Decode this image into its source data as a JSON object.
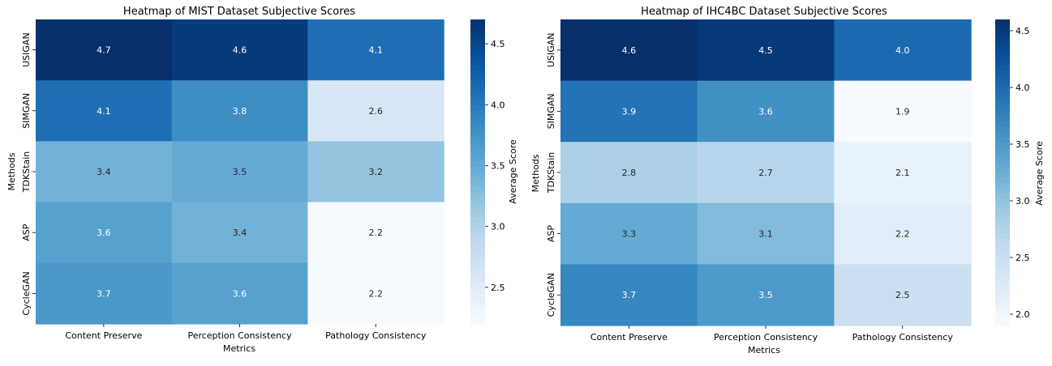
{
  "chart_data": [
    {
      "type": "heatmap",
      "title": "Heatmap of MIST Dataset Subjective Scores",
      "xlabel": "Metrics",
      "ylabel": "Methods",
      "x_categories": [
        "Content Preserve",
        "Perception Consistency",
        "Pathology Consistency"
      ],
      "y_categories": [
        "USIGAN",
        "SIMGAN",
        "TDKStain",
        "ASP",
        "CycleGAN"
      ],
      "values": [
        [
          4.7,
          4.6,
          4.1
        ],
        [
          4.1,
          3.8,
          2.6
        ],
        [
          3.4,
          3.5,
          3.2
        ],
        [
          3.6,
          3.4,
          2.2
        ],
        [
          3.7,
          3.6,
          2.2
        ]
      ],
      "colorbar": {
        "label": "Average Score",
        "range": [
          2.2,
          4.7
        ],
        "ticks": [
          "2.5",
          "3.0",
          "3.5",
          "4.0",
          "4.5"
        ],
        "colormap": "Blues"
      }
    },
    {
      "type": "heatmap",
      "title": "Heatmap of IHC4BC Dataset Subjective Scores",
      "xlabel": "Metrics",
      "ylabel": "Methods",
      "x_categories": [
        "Content Preserve",
        "Perception Consistency",
        "Pathology Consistency"
      ],
      "y_categories": [
        "USIGAN",
        "SIMGAN",
        "TDKStain",
        "ASP",
        "CycleGAN"
      ],
      "values": [
        [
          4.6,
          4.5,
          4.0
        ],
        [
          3.9,
          3.6,
          1.9
        ],
        [
          2.8,
          2.7,
          2.1
        ],
        [
          3.3,
          3.1,
          2.2
        ],
        [
          3.7,
          3.5,
          2.5
        ]
      ],
      "colorbar": {
        "label": "Average Score",
        "range": [
          1.9,
          4.6
        ],
        "ticks": [
          "2.0",
          "2.5",
          "3.0",
          "3.5",
          "4.0",
          "4.5"
        ],
        "colormap": "Blues"
      }
    }
  ]
}
